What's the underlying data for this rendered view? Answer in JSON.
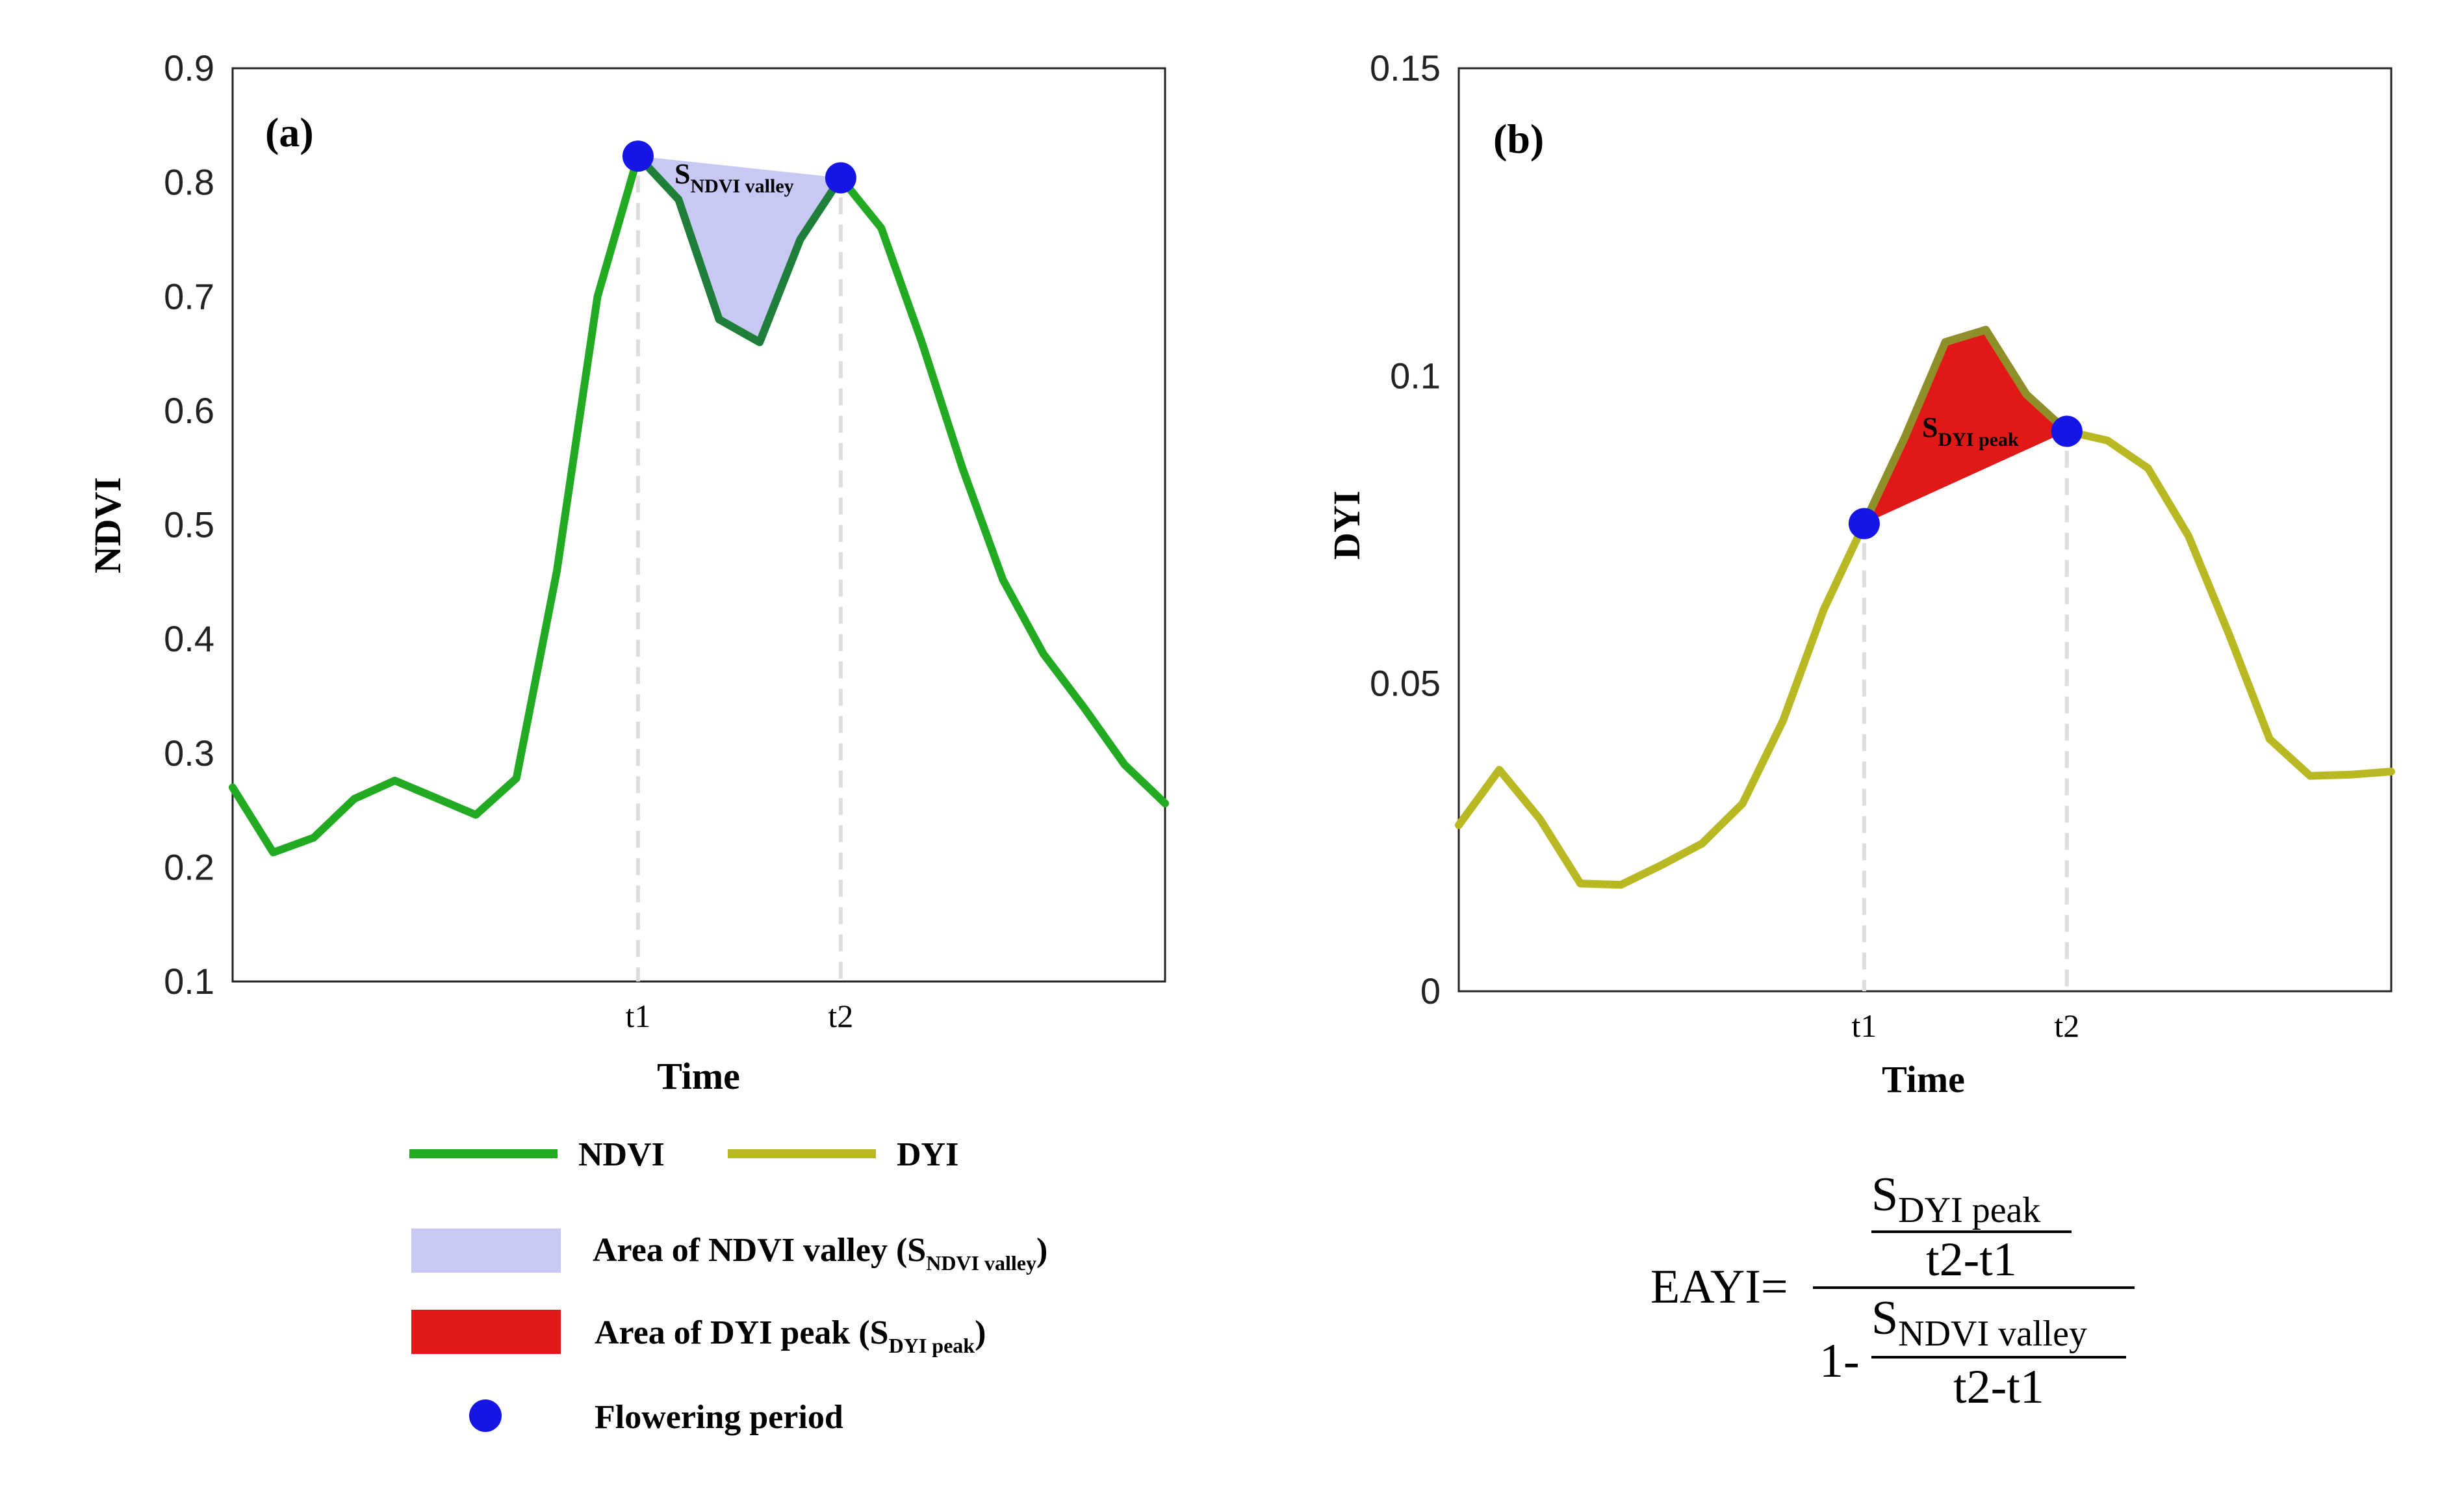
{
  "chart_data": [
    {
      "type": "line",
      "panel_label": "(a)",
      "xlabel": "Time",
      "ylabel": "NDVI",
      "ylim": [
        0.1,
        0.9
      ],
      "yticks": [
        "0.1",
        "0.2",
        "0.3",
        "0.4",
        "0.5",
        "0.6",
        "0.7",
        "0.8",
        "0.9"
      ],
      "xlim": [
        0,
        23
      ],
      "xticks": [
        {
          "x": 10,
          "label": "t1"
        },
        {
          "x": 15,
          "label": "t2"
        }
      ],
      "color": "#22aa22",
      "series": [
        {
          "name": "NDVI",
          "x": [
            0,
            1,
            2,
            3,
            4,
            5,
            6,
            7,
            8,
            9,
            10,
            11,
            12,
            13,
            14,
            15,
            16,
            17,
            18,
            19,
            20,
            21,
            22,
            23
          ],
          "values": [
            0.27,
            0.213,
            0.226,
            0.26,
            0.276,
            0.261,
            0.246,
            0.278,
            0.46,
            0.7,
            0.823,
            0.785,
            0.68,
            0.66,
            0.75,
            0.804,
            0.76,
            0.66,
            0.55,
            0.452,
            0.387,
            0.34,
            0.29,
            0.256
          ]
        }
      ],
      "flowering_points": [
        {
          "x": 10,
          "y": 0.823
        },
        {
          "x": 15,
          "y": 0.804
        }
      ],
      "area": {
        "label": "S",
        "sub": "NDVI valley",
        "color": "#c8c8f5"
      }
    },
    {
      "type": "line",
      "panel_label": "(b)",
      "xlabel": "Time",
      "ylabel": "DYI",
      "ylim": [
        0,
        0.15
      ],
      "yticks": [
        "0",
        "0.05",
        "0.1",
        "0.15"
      ],
      "xlim": [
        0,
        23
      ],
      "xticks": [
        {
          "x": 10,
          "label": "t1"
        },
        {
          "x": 15,
          "label": "t2"
        }
      ],
      "color": "#b8b822",
      "series": [
        {
          "name": "DYI",
          "x": [
            0,
            1,
            2,
            3,
            4,
            5,
            6,
            7,
            8,
            9,
            10,
            11,
            12,
            13,
            14,
            15,
            16,
            17,
            18,
            19,
            20,
            21,
            22,
            23
          ],
          "values": [
            0.027,
            0.036,
            0.028,
            0.0175,
            0.0173,
            0.0205,
            0.024,
            0.0305,
            0.044,
            0.062,
            0.076,
            0.09,
            0.1055,
            0.1075,
            0.097,
            0.091,
            0.0895,
            0.085,
            0.074,
            0.058,
            0.041,
            0.035,
            0.0352,
            0.0357
          ]
        }
      ],
      "flowering_points": [
        {
          "x": 10,
          "y": 0.076
        },
        {
          "x": 15,
          "y": 0.091
        }
      ],
      "area": {
        "label": "S",
        "sub": "DYI peak",
        "color": "#e01818"
      }
    }
  ],
  "legend": {
    "ndvi_label": "NDVI",
    "dyi_label": "DYI",
    "valley_text": "Area of NDVI valley (S",
    "valley_sub": "NDVI valley",
    "peak_text": "Area of DYI peak (S",
    "peak_sub": "DYI peak",
    "close_paren": ")",
    "flowering_label": "Flowering period",
    "point_color": "#1515e6"
  },
  "formula": {
    "lhs": "EAYI=",
    "top_S": "S",
    "top_sub": "DYI peak",
    "denom": "t2-t1",
    "one_minus": "1-",
    "bottom_S": "S",
    "bottom_sub": "NDVI valley",
    "denom2": "t2-t1"
  }
}
